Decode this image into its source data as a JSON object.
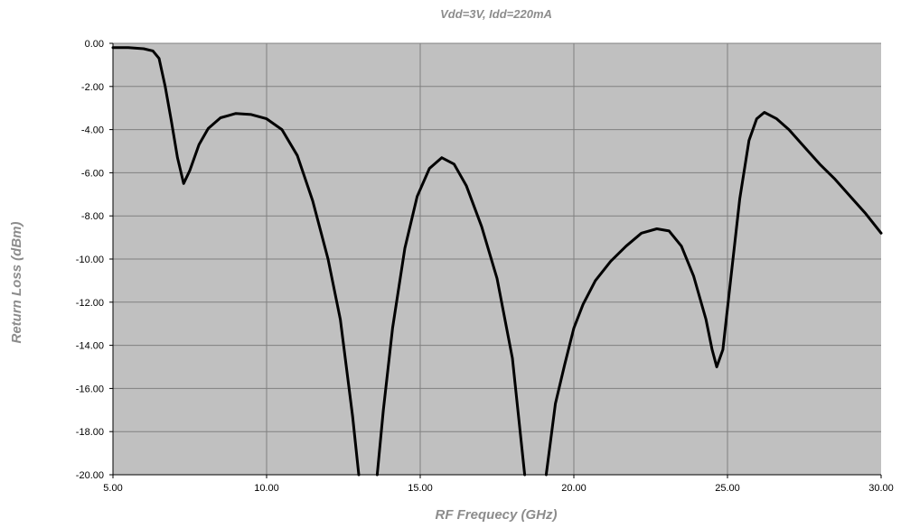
{
  "chart_data": {
    "type": "line",
    "title": "Vdd=3V, Idd=220mA",
    "xlabel": "RF Frequecy (GHz)",
    "ylabel": "Return Loss (dBm)",
    "xlim": [
      5,
      30
    ],
    "ylim": [
      -20,
      0
    ],
    "x_ticks": [
      "5.00",
      "10.00",
      "15.00",
      "20.00",
      "25.00",
      "30.00"
    ],
    "y_ticks": [
      "0.00",
      "-2.00",
      "-4.00",
      "-6.00",
      "-8.00",
      "-10.00",
      "-12.00",
      "-14.00",
      "-16.00",
      "-18.00",
      "-20.00"
    ],
    "grid": true,
    "plot_background": "#c0c0c0",
    "series": [
      {
        "color": "#000000",
        "points": [
          [
            5.0,
            -0.2
          ],
          [
            5.5,
            -0.2
          ],
          [
            6.0,
            -0.25
          ],
          [
            6.3,
            -0.35
          ],
          [
            6.5,
            -0.7
          ],
          [
            6.7,
            -2.0
          ],
          [
            6.9,
            -3.6
          ],
          [
            7.1,
            -5.3
          ],
          [
            7.3,
            -6.5
          ],
          [
            7.5,
            -5.9
          ],
          [
            7.8,
            -4.7
          ],
          [
            8.1,
            -3.95
          ],
          [
            8.5,
            -3.45
          ],
          [
            9.0,
            -3.25
          ],
          [
            9.5,
            -3.3
          ],
          [
            10.0,
            -3.5
          ],
          [
            10.5,
            -4.0
          ],
          [
            11.0,
            -5.2
          ],
          [
            11.5,
            -7.3
          ],
          [
            12.0,
            -10.0
          ],
          [
            12.4,
            -12.8
          ],
          [
            12.8,
            -17.3
          ],
          [
            13.0,
            -20.0
          ],
          [
            13.6,
            -20.0
          ],
          [
            13.8,
            -17.0
          ],
          [
            14.1,
            -13.2
          ],
          [
            14.5,
            -9.5
          ],
          [
            14.9,
            -7.1
          ],
          [
            15.3,
            -5.8
          ],
          [
            15.7,
            -5.3
          ],
          [
            16.1,
            -5.6
          ],
          [
            16.5,
            -6.6
          ],
          [
            17.0,
            -8.5
          ],
          [
            17.5,
            -10.9
          ],
          [
            18.0,
            -14.6
          ],
          [
            18.4,
            -20.0
          ],
          [
            19.1,
            -20.0
          ],
          [
            19.4,
            -16.7
          ],
          [
            19.7,
            -14.9
          ],
          [
            20.0,
            -13.2
          ],
          [
            20.3,
            -12.1
          ],
          [
            20.7,
            -11.0
          ],
          [
            21.2,
            -10.1
          ],
          [
            21.7,
            -9.4
          ],
          [
            22.2,
            -8.8
          ],
          [
            22.7,
            -8.6
          ],
          [
            23.1,
            -8.7
          ],
          [
            23.5,
            -9.4
          ],
          [
            23.9,
            -10.8
          ],
          [
            24.3,
            -12.8
          ],
          [
            24.5,
            -14.2
          ],
          [
            24.65,
            -15.0
          ],
          [
            24.85,
            -14.2
          ],
          [
            25.1,
            -11.0
          ],
          [
            25.4,
            -7.2
          ],
          [
            25.7,
            -4.5
          ],
          [
            25.95,
            -3.5
          ],
          [
            26.2,
            -3.2
          ],
          [
            26.6,
            -3.5
          ],
          [
            27.0,
            -4.0
          ],
          [
            27.5,
            -4.8
          ],
          [
            28.0,
            -5.6
          ],
          [
            28.5,
            -6.3
          ],
          [
            29.0,
            -7.1
          ],
          [
            29.5,
            -7.9
          ],
          [
            30.0,
            -8.8
          ]
        ]
      }
    ]
  }
}
